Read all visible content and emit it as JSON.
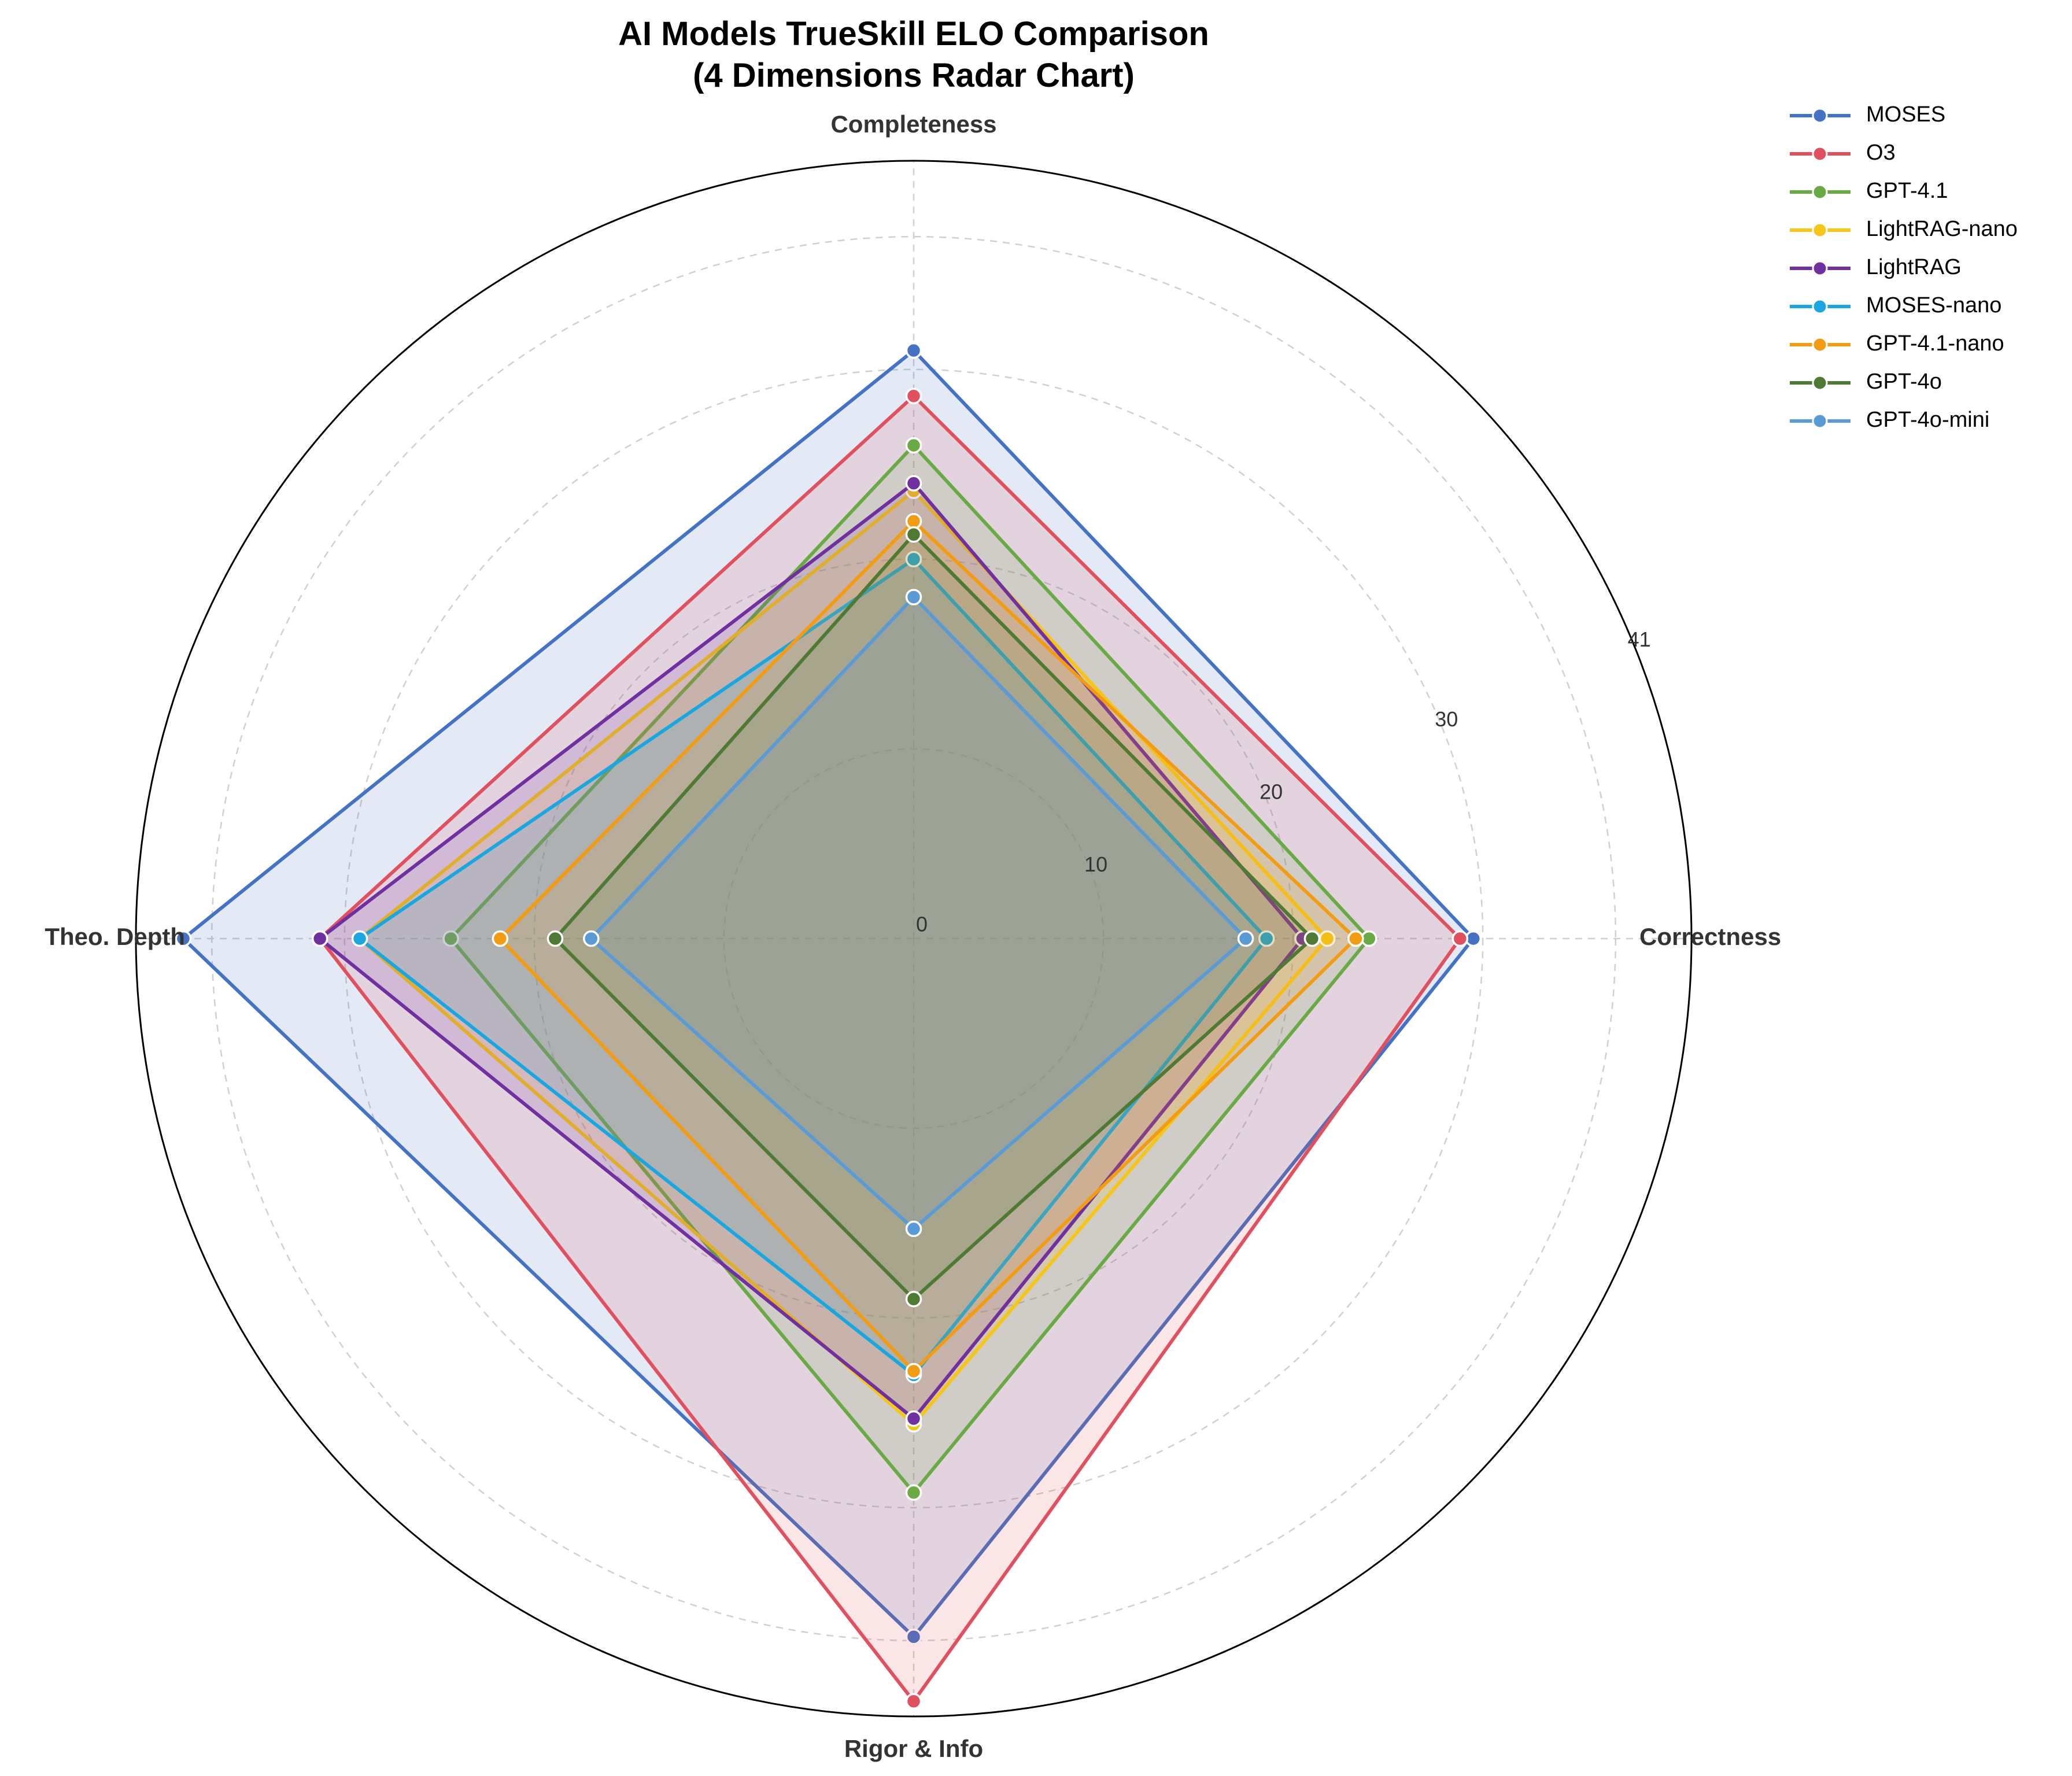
{
  "chart_data": {
    "type": "radar",
    "title": "AI Models TrueSkill ELO Comparison",
    "subtitle": "(4 Dimensions Radar Chart)",
    "axes": [
      "Correctness",
      "Completeness",
      "Theo. Depth",
      "Rigor & Info"
    ],
    "rlim": [
      0,
      41
    ],
    "r_ticks": [
      0,
      10,
      20,
      30,
      41
    ],
    "grid": true,
    "legend_position": "top-right",
    "series": [
      {
        "name": "MOSES",
        "color": "#4472C4",
        "values": [
          29.5,
          31.0,
          38.5,
          36.8
        ]
      },
      {
        "name": "O3",
        "color": "#E0505E",
        "values": [
          28.8,
          28.6,
          31.3,
          40.2
        ]
      },
      {
        "name": "GPT-4.1",
        "color": "#6AAA45",
        "values": [
          24.0,
          26.0,
          24.4,
          29.2
        ]
      },
      {
        "name": "LightRAG-nano",
        "color": "#F5C518",
        "values": [
          21.8,
          23.6,
          29.2,
          25.6
        ]
      },
      {
        "name": "LightRAG",
        "color": "#7030A0",
        "values": [
          20.5,
          24.0,
          31.3,
          25.3
        ]
      },
      {
        "name": "MOSES-nano",
        "color": "#1AA7E0",
        "values": [
          18.6,
          20.0,
          29.2,
          23.0
        ]
      },
      {
        "name": "GPT-4.1-nano",
        "color": "#F39C12",
        "values": [
          23.3,
          22.0,
          21.8,
          22.8
        ]
      },
      {
        "name": "GPT-4o",
        "color": "#4E7A33",
        "values": [
          21.0,
          21.3,
          18.9,
          19.0
        ]
      },
      {
        "name": "GPT-4o-mini",
        "color": "#5B9BD5",
        "values": [
          17.5,
          18.0,
          17.0,
          15.3
        ]
      }
    ]
  }
}
